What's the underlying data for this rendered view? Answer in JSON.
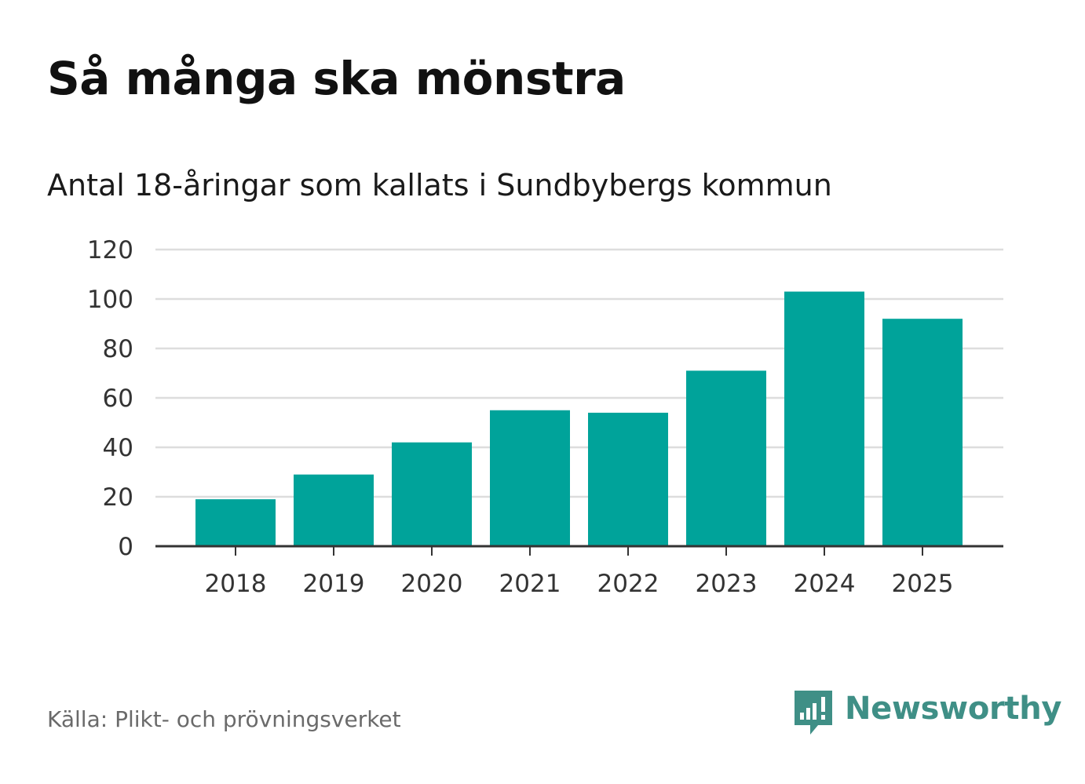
{
  "header": {
    "title": "Så många ska mönstra",
    "subtitle": "Antal 18-åringar som kallats i Sundbybergs kommun"
  },
  "footer": {
    "source": "Källa: Plikt- och prövningsverket",
    "brand_name": "Newsworthy",
    "brand_icon": "newsworthy-logo-icon"
  },
  "colors": {
    "bar": "#00A39A",
    "grid": "#DDDDDD",
    "axis": "#333333",
    "brand": "#3F8F86"
  },
  "chart_data": {
    "type": "bar",
    "title": "Så många ska mönstra",
    "subtitle": "Antal 18-åringar som kallats i Sundbybergs kommun",
    "xlabel": "",
    "ylabel": "",
    "categories": [
      "2018",
      "2019",
      "2020",
      "2021",
      "2022",
      "2023",
      "2024",
      "2025"
    ],
    "values": [
      19,
      29,
      42,
      55,
      54,
      71,
      103,
      92
    ],
    "ylim": [
      0,
      120
    ],
    "yticks": [
      0,
      20,
      40,
      60,
      80,
      100,
      120
    ],
    "grid": true,
    "legend": "none"
  }
}
